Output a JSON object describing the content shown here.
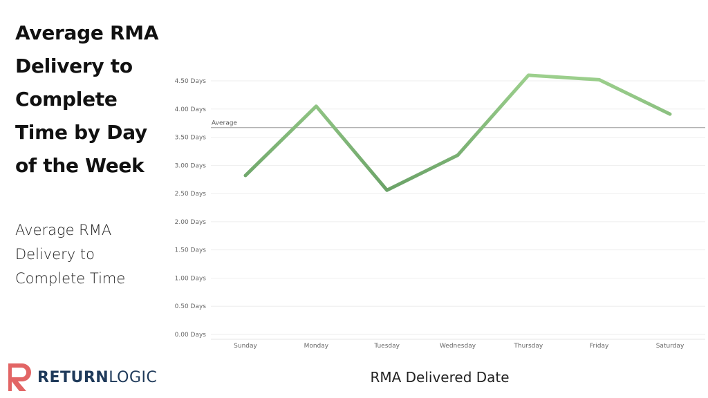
{
  "page": {
    "title": "Average RMA Delivery to Complete Time by Day of the Week",
    "subtitle": "Average RMA Delivery to Complete Time"
  },
  "logo": {
    "word1": "RETURN",
    "word2": "LOGIC",
    "brand_color": "#e26565",
    "text_color": "#1f3a5a"
  },
  "chart_data": {
    "type": "line",
    "title": "Average RMA Delivery to Complete Time by Day of the Week",
    "xlabel": "RMA Delivered Date",
    "ylabel": "",
    "categories": [
      "Sunday",
      "Monday",
      "Tuesday",
      "Wednesday",
      "Thursday",
      "Friday",
      "Saturday"
    ],
    "series": [
      {
        "values": [
          2.82,
          4.05,
          2.56,
          3.18,
          4.6,
          4.52,
          3.91
        ]
      }
    ],
    "reference_line": {
      "label": "Average",
      "value": 3.67
    },
    "ylim": [
      0,
      4.5
    ],
    "yticks": [
      {
        "value": 0.0,
        "label": "0.00 Days"
      },
      {
        "value": 0.5,
        "label": "0.50 Days"
      },
      {
        "value": 1.0,
        "label": "1.00 Days"
      },
      {
        "value": 1.5,
        "label": "1.50 Days"
      },
      {
        "value": 2.0,
        "label": "2.00 Days"
      },
      {
        "value": 2.5,
        "label": "2.50 Days"
      },
      {
        "value": 3.0,
        "label": "3.00 Days"
      },
      {
        "value": 3.5,
        "label": "3.50 Days"
      },
      {
        "value": 4.0,
        "label": "4.00 Days"
      },
      {
        "value": 4.5,
        "label": "4.50 Days"
      }
    ],
    "grid": true,
    "legend": "none",
    "colors": {
      "line_dark": "#2e6b3a",
      "line_light": "#9fd28f",
      "reference": "#999999",
      "grid": "#eeeeee"
    }
  }
}
